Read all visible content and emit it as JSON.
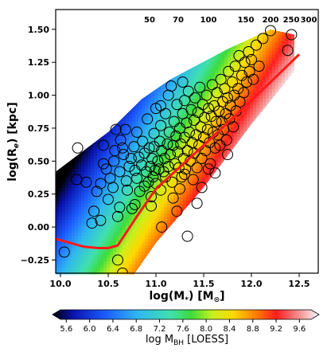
{
  "chart_data": {
    "type": "scatter",
    "xlabel": "log(M",
    "xlabel_sub": "*",
    "xlabel_rest": ") [M",
    "xlabel_sun": "⊙",
    "xlabel_end": "]",
    "ylabel": "log(R",
    "ylabel_sub": "e",
    "ylabel_end": ") [kpc]",
    "xlim": [
      9.95,
      12.7
    ],
    "ylim": [
      -0.35,
      1.65
    ],
    "x_ticks": [
      "10.0",
      "10.5",
      "11.0",
      "11.5",
      "12.0",
      "12.5"
    ],
    "x_tick_values": [
      10.0,
      10.5,
      11.0,
      11.5,
      12.0,
      12.5
    ],
    "y_ticks": [
      "−0.25",
      "0.00",
      "0.25",
      "0.50",
      "0.75",
      "1.00",
      "1.25",
      "1.50"
    ],
    "y_tick_values": [
      -0.25,
      0.0,
      0.25,
      0.5,
      0.75,
      1.0,
      1.25,
      1.5
    ],
    "dispersion_lines": [
      {
        "label": "50",
        "sigma": 50
      },
      {
        "label": "70",
        "sigma": 70
      },
      {
        "label": "100",
        "sigma": 100
      },
      {
        "label": "150",
        "sigma": 150
      },
      {
        "label": "200",
        "sigma": 200
      },
      {
        "label": "250",
        "sigma": 250
      },
      {
        "label": "300",
        "sigma": 300
      }
    ],
    "zoe_curve": {
      "color": "#ff1a1a",
      "x": [
        9.95,
        10.1,
        10.25,
        10.4,
        10.5,
        10.6,
        10.8,
        11.0,
        11.5,
        12.0,
        12.5
      ],
      "y": [
        -0.09,
        -0.12,
        -0.15,
        -0.16,
        -0.16,
        -0.14,
        0.08,
        0.29,
        0.62,
        0.96,
        1.31
      ]
    },
    "galaxies": [
      [
        10.04,
        -0.19
      ],
      [
        10.18,
        0.6
      ],
      [
        10.17,
        0.36
      ],
      [
        10.27,
        0.34
      ],
      [
        10.35,
        0.12
      ],
      [
        10.33,
        0.03
      ],
      [
        10.42,
        0.05
      ],
      [
        10.38,
        0.27
      ],
      [
        10.42,
        0.33
      ],
      [
        10.45,
        0.48
      ],
      [
        10.48,
        0.44
      ],
      [
        10.5,
        0.21
      ],
      [
        10.52,
        0.37
      ],
      [
        10.55,
        0.3
      ],
      [
        10.56,
        0.5
      ],
      [
        10.57,
        0.58
      ],
      [
        10.6,
        0.08
      ],
      [
        10.62,
        0.42
      ],
      [
        10.63,
        0.66
      ],
      [
        10.66,
        0.55
      ],
      [
        10.68,
        0.74
      ],
      [
        10.69,
        0.35
      ],
      [
        10.7,
        0.28
      ],
      [
        10.72,
        0.46
      ],
      [
        10.74,
        0.52
      ],
      [
        10.75,
        0.14
      ],
      [
        10.77,
        0.61
      ],
      [
        10.78,
        0.43
      ],
      [
        10.8,
        0.72
      ],
      [
        10.8,
        0.37
      ],
      [
        10.82,
        0.53
      ],
      [
        10.83,
        0.27
      ],
      [
        10.85,
        0.47
      ],
      [
        10.86,
        0.65
      ],
      [
        10.88,
        0.31
      ],
      [
        10.88,
        0.56
      ],
      [
        10.9,
        0.42
      ],
      [
        10.91,
        0.82
      ],
      [
        10.92,
        0.34
      ],
      [
        10.93,
        0.6
      ],
      [
        10.94,
        0.46
      ],
      [
        10.95,
        0.16
      ],
      [
        10.96,
        0.52
      ],
      [
        10.97,
        0.38
      ],
      [
        10.98,
        0.71
      ],
      [
        10.98,
        0.61
      ],
      [
        10.99,
        0.43
      ],
      [
        11.0,
        0.33
      ],
      [
        11.0,
        0.9
      ],
      [
        11.02,
        0.5
      ],
      [
        11.03,
        0.44
      ],
      [
        11.04,
        0.65
      ],
      [
        11.05,
        0.77
      ],
      [
        11.05,
        0.28
      ],
      [
        11.06,
        0.58
      ],
      [
        11.08,
        0.42
      ],
      [
        11.09,
        0.52
      ],
      [
        11.1,
        0.86
      ],
      [
        11.1,
        0.38
      ],
      [
        11.12,
        0.63
      ],
      [
        11.13,
        0.46
      ],
      [
        11.14,
        0.72
      ],
      [
        11.15,
        0.55
      ],
      [
        11.16,
        1.07
      ],
      [
        11.17,
        0.34
      ],
      [
        11.18,
        0.62
      ],
      [
        11.19,
        0.8
      ],
      [
        11.2,
        0.48
      ],
      [
        11.21,
        0.69
      ],
      [
        11.22,
        0.93
      ],
      [
        11.23,
        0.57
      ],
      [
        11.24,
        0.45
      ],
      [
        11.25,
        0.75
      ],
      [
        11.26,
        0.63
      ],
      [
        11.27,
        0.38
      ],
      [
        11.28,
        0.86
      ],
      [
        11.29,
        0.52
      ],
      [
        11.3,
        0.96
      ],
      [
        11.3,
        0.68
      ],
      [
        11.31,
        0.44
      ],
      [
        11.32,
        0.79
      ],
      [
        11.33,
        0.58
      ],
      [
        11.34,
        1.03
      ],
      [
        11.35,
        0.72
      ],
      [
        11.36,
        0.5
      ],
      [
        11.37,
        0.89
      ],
      [
        11.38,
        0.64
      ],
      [
        11.39,
        0.36
      ],
      [
        11.4,
        0.81
      ],
      [
        11.4,
        0.56
      ],
      [
        11.41,
        0.98
      ],
      [
        11.42,
        0.7
      ],
      [
        11.43,
        0.45
      ],
      [
        11.44,
        0.87
      ],
      [
        11.45,
        0.62
      ],
      [
        11.46,
        1.06
      ],
      [
        11.47,
        0.76
      ],
      [
        11.48,
        0.52
      ],
      [
        11.49,
        0.93
      ],
      [
        11.5,
        0.68
      ],
      [
        11.51,
        0.83
      ],
      [
        11.52,
        0.58
      ],
      [
        11.53,
        1.0
      ],
      [
        11.54,
        0.74
      ],
      [
        11.55,
        0.9
      ],
      [
        11.56,
        0.64
      ],
      [
        11.57,
        0.48
      ],
      [
        11.58,
        0.84
      ],
      [
        11.59,
        1.08
      ],
      [
        11.6,
        0.72
      ],
      [
        11.61,
        0.92
      ],
      [
        11.62,
        0.6
      ],
      [
        11.63,
        0.8
      ],
      [
        11.64,
        1.02
      ],
      [
        11.65,
        0.7
      ],
      [
        11.66,
        0.88
      ],
      [
        11.67,
        0.62
      ],
      [
        11.68,
        1.12
      ],
      [
        11.69,
        0.8
      ],
      [
        11.7,
        0.95
      ],
      [
        11.71,
        0.74
      ],
      [
        11.72,
        1.05
      ],
      [
        11.73,
        0.86
      ],
      [
        11.74,
        0.66
      ],
      [
        11.75,
        0.98
      ],
      [
        11.76,
        1.18
      ],
      [
        11.77,
        0.82
      ],
      [
        11.78,
        0.92
      ],
      [
        11.8,
        1.1
      ],
      [
        11.81,
        0.76
      ],
      [
        11.82,
        1.0
      ],
      [
        11.83,
        1.22
      ],
      [
        11.84,
        0.88
      ],
      [
        11.86,
        1.05
      ],
      [
        11.87,
        1.3
      ],
      [
        11.88,
        0.95
      ],
      [
        11.9,
        1.15
      ],
      [
        11.92,
        1.02
      ],
      [
        11.93,
        1.25
      ],
      [
        11.95,
        1.1
      ],
      [
        11.97,
        1.33
      ],
      [
        11.98,
        1.18
      ],
      [
        12.0,
        1.27
      ],
      [
        12.02,
        1.12
      ],
      [
        12.05,
        1.38
      ],
      [
        12.08,
        1.22
      ],
      [
        12.12,
        1.43
      ],
      [
        12.2,
        1.49
      ],
      [
        12.38,
        1.34
      ],
      [
        12.42,
        1.46
      ],
      [
        11.13,
        1.0
      ],
      [
        11.05,
        0.92
      ],
      [
        11.28,
        1.1
      ],
      [
        10.62,
        0.15
      ],
      [
        10.78,
        0.17
      ],
      [
        11.18,
        0.22
      ],
      [
        11.25,
        0.29
      ],
      [
        11.06,
        -0.0
      ],
      [
        11.22,
        0.12
      ],
      [
        11.43,
        0.18
      ],
      [
        10.95,
        0.23
      ],
      [
        10.65,
        0.6
      ],
      [
        10.45,
        0.62
      ],
      [
        10.58,
        0.74
      ],
      [
        11.48,
        0.3
      ],
      [
        11.62,
        0.41
      ],
      [
        11.75,
        0.55
      ],
      [
        11.33,
        -0.07
      ],
      [
        10.6,
        -0.25
      ],
      [
        10.65,
        -0.35
      ],
      [
        11.3,
        0.4
      ],
      [
        11.55,
        0.44
      ]
    ],
    "colorbar": {
      "label": "log M",
      "label_sub": "BH",
      "label_end": " [LOESS]",
      "min": 5.5,
      "max": 9.8,
      "ticks": [
        "5.6",
        "6.0",
        "6.4",
        "6.8",
        "7.2",
        "7.6",
        "8.0",
        "8.4",
        "8.8",
        "9.2",
        "9.6"
      ],
      "tick_values": [
        5.6,
        6.0,
        6.4,
        6.8,
        7.2,
        7.6,
        8.0,
        8.4,
        8.8,
        9.2,
        9.6
      ]
    }
  }
}
